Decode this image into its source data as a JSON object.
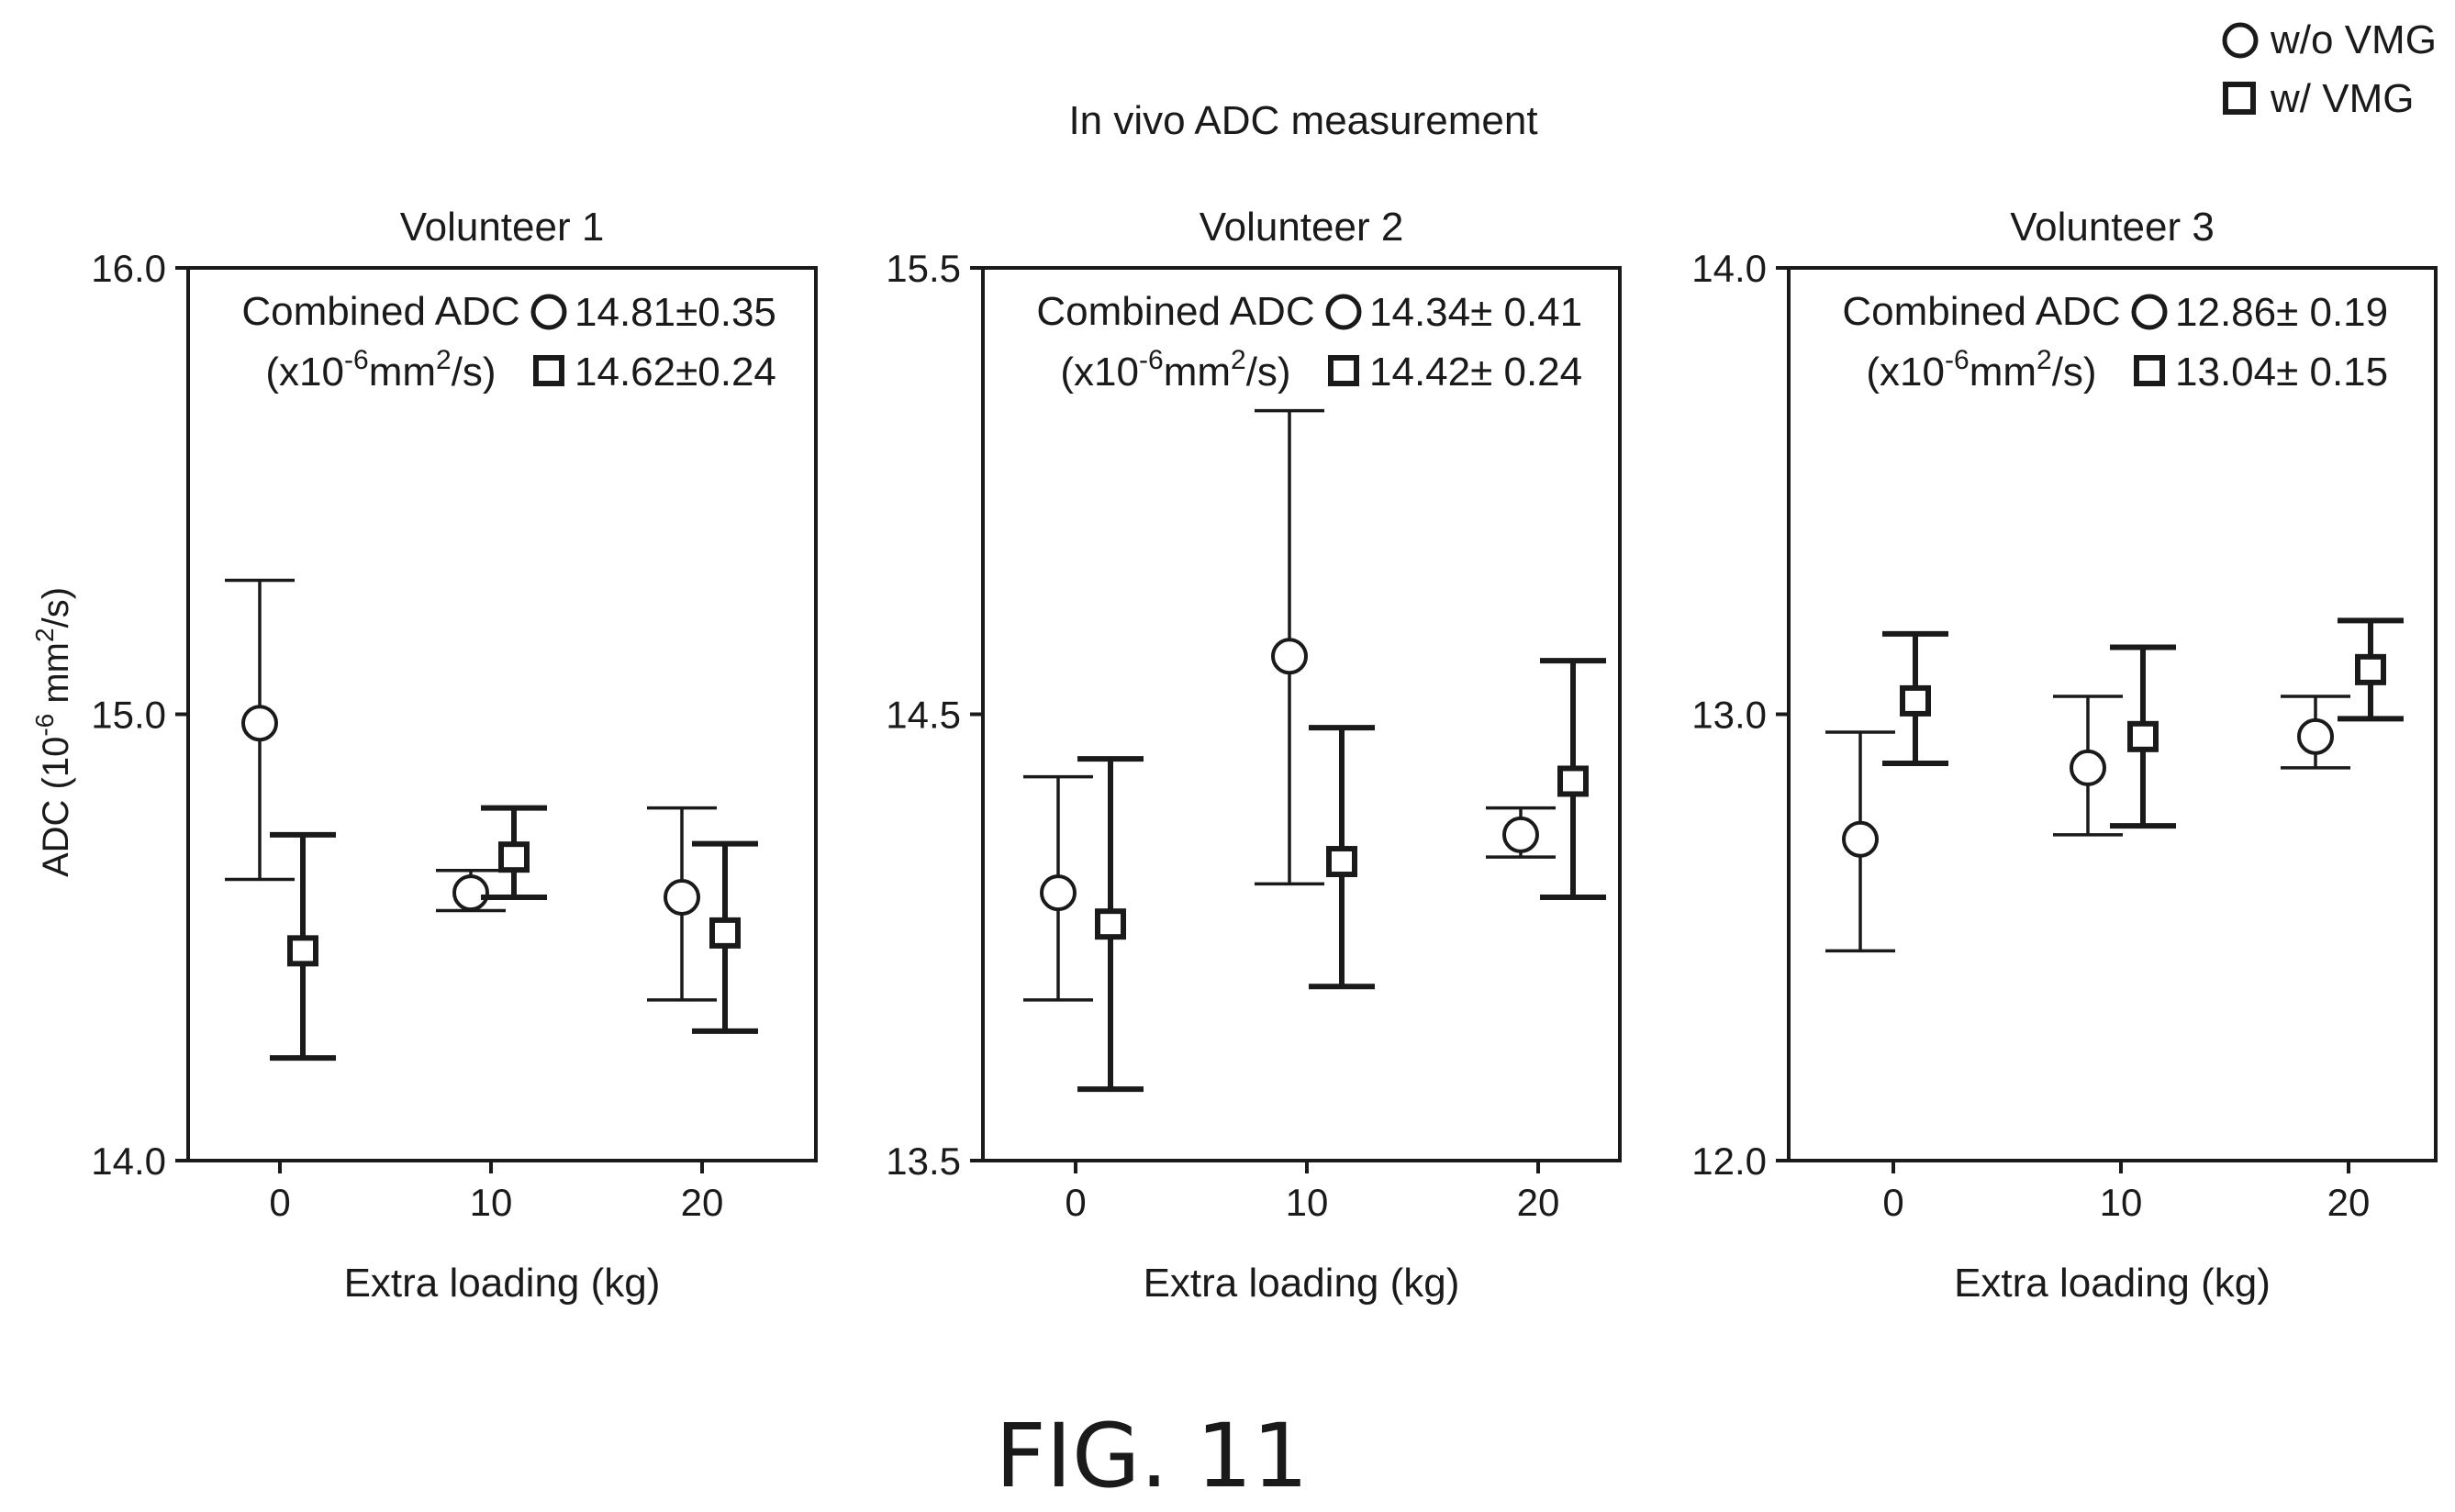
{
  "figure": {
    "title": "In vivo ADC measurement",
    "caption": "FIG. 11",
    "y_label_main": "ADC (10",
    "y_label_exp": "-6",
    "y_label_unit": " mm",
    "y_label_unit_exp": "2",
    "y_label_end": "/s)",
    "legend": [
      {
        "marker": "circle",
        "label": "w/o VMG"
      },
      {
        "marker": "square",
        "label": "w/ VMG"
      }
    ],
    "combined": {
      "line1": "Combined ADC",
      "line2_pre": "(x10",
      "line2_exp": "-6",
      "line2_mid": "mm",
      "line2_exp2": "2",
      "line2_end": "/s)"
    }
  },
  "chart_data": [
    {
      "type": "scatter",
      "title": "Volunteer 1",
      "xlabel": "Extra loading (kg)",
      "ylabel": "ADC (10-6 mm2/s)",
      "xticks": [
        0,
        10,
        20
      ],
      "ylim": [
        14.0,
        16.0
      ],
      "yticks": [
        "14.0",
        "15.0",
        "16.0"
      ],
      "grid": false,
      "combined": {
        "without": "14.81±0.35",
        "with": "14.62±0.24"
      },
      "series": [
        {
          "name": "w/o VMG",
          "marker": "circle",
          "x": [
            0,
            10,
            20
          ],
          "y": [
            14.98,
            14.6,
            14.59
          ],
          "err_low": [
            14.63,
            14.56,
            14.36
          ],
          "err_high": [
            15.3,
            14.65,
            14.79
          ]
        },
        {
          "name": "w/ VMG",
          "marker": "square",
          "x": [
            0,
            10,
            20
          ],
          "y": [
            14.47,
            14.68,
            14.51
          ],
          "err_low": [
            14.23,
            14.59,
            14.29
          ],
          "err_high": [
            14.73,
            14.79,
            14.71
          ]
        }
      ]
    },
    {
      "type": "scatter",
      "title": "Volunteer 2",
      "xlabel": "Extra loading (kg)",
      "ylabel": "",
      "xticks": [
        0,
        10,
        20
      ],
      "ylim": [
        13.5,
        15.5
      ],
      "yticks": [
        "13.5",
        "14.5",
        "15.5"
      ],
      "grid": false,
      "combined": {
        "without": "14.34± 0.41",
        "with": "14.42± 0.24"
      },
      "series": [
        {
          "name": "w/o VMG",
          "marker": "circle",
          "x": [
            0,
            10,
            20
          ],
          "y": [
            14.1,
            14.63,
            14.23
          ],
          "err_low": [
            13.86,
            14.12,
            14.18
          ],
          "err_high": [
            14.36,
            15.18,
            14.29
          ]
        },
        {
          "name": "w/ VMG",
          "marker": "square",
          "x": [
            0,
            10,
            20
          ],
          "y": [
            14.03,
            14.17,
            14.35
          ],
          "err_low": [
            13.66,
            13.89,
            14.09
          ],
          "err_high": [
            14.4,
            14.47,
            14.62
          ]
        }
      ]
    },
    {
      "type": "scatter",
      "title": "Volunteer 3",
      "xlabel": "Extra loading (kg)",
      "ylabel": "",
      "xticks": [
        0,
        10,
        20
      ],
      "ylim": [
        12.0,
        14.0
      ],
      "yticks": [
        "12.0",
        "13.0",
        "14.0"
      ],
      "grid": false,
      "combined": {
        "without": "12.86± 0.19",
        "with": "13.04± 0.15"
      },
      "series": [
        {
          "name": "w/o VMG",
          "marker": "circle",
          "x": [
            0,
            10,
            20
          ],
          "y": [
            12.72,
            12.88,
            12.95
          ],
          "err_low": [
            12.47,
            12.73,
            12.88
          ],
          "err_high": [
            12.96,
            13.04,
            13.04
          ]
        },
        {
          "name": "w/ VMG",
          "marker": "square",
          "x": [
            0,
            10,
            20
          ],
          "y": [
            13.03,
            12.95,
            13.1
          ],
          "err_low": [
            12.89,
            12.75,
            12.99
          ],
          "err_high": [
            13.18,
            13.15,
            13.21
          ]
        }
      ]
    }
  ]
}
